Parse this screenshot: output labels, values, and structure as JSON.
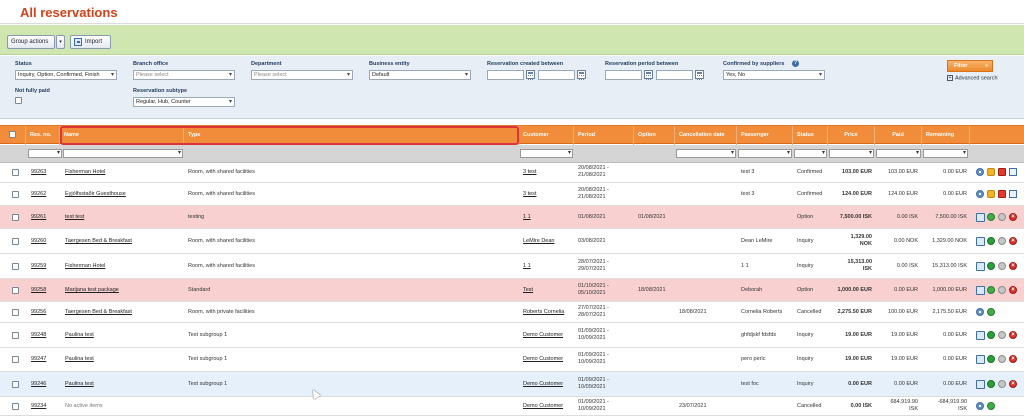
{
  "page": {
    "title": "All reservations"
  },
  "toolbar": {
    "group_actions": "Group actions",
    "group_arrow": "▾",
    "import": "Import"
  },
  "filters": {
    "status": {
      "label": "Status",
      "value": "Inquiry, Option, Confirmed, Finish"
    },
    "branch_office": {
      "label": "Branch office",
      "placeholder": "Please select"
    },
    "department": {
      "label": "Department",
      "placeholder": "Please select"
    },
    "business_entity": {
      "label": "Business entity",
      "value": "Default"
    },
    "created_between": {
      "label": "Reservation created between"
    },
    "period_between": {
      "label": "Reservation period between"
    },
    "confirmed_by_suppliers": {
      "label": "Confirmed by suppliers",
      "value": "Yes, No",
      "help": "?"
    },
    "not_fully_paid": {
      "label": "Not fully paid"
    },
    "subtype": {
      "label": "Reservation subtype",
      "value": "Regular, Hub, Counter"
    },
    "filter_button": "Filter",
    "filter_arrow": "»",
    "advanced_search": "Advanced search",
    "advanced_toggle": "+"
  },
  "columns": {
    "res_no": "Res. no.",
    "name": "Name",
    "type": "Type",
    "customer": "Customer",
    "period": "Period",
    "option": "Option",
    "cancellation_date": "Cancellation date",
    "passenger": "Passenger",
    "status": "Status",
    "price": "Price",
    "paid": "Paid",
    "remaining": "Remaining"
  },
  "rows": [
    {
      "res_no": "99263",
      "name": "Fisherman Hotel",
      "type": "Room, with shared facilities",
      "customer": "3 test",
      "period_1": "20/08/2021 -",
      "period_2": "21/08/2021",
      "option": "",
      "cancellation": "",
      "passenger": "test 3",
      "status": "Confirmed",
      "price": "103.00 EUR",
      "price_2": "",
      "paid": "103.00 EUR",
      "paid_2": "",
      "remaining": "0.00 EUR",
      "remaining_2": "",
      "highlight": false
    },
    {
      "res_no": "99262",
      "name": "Eyjólfsstaðir Guesthouse",
      "type": "Room, with shared facilities",
      "customer": "3 test",
      "period_1": "20/08/2021 -",
      "period_2": "21/08/2021",
      "option": "",
      "cancellation": "",
      "passenger": "test 3",
      "status": "Confirmed",
      "price": "124.00 EUR",
      "price_2": "",
      "paid": "124.00 EUR",
      "paid_2": "",
      "remaining": "0.00 EUR",
      "remaining_2": "",
      "highlight": false
    },
    {
      "res_no": "99261",
      "name": "test test",
      "type": "testing",
      "customer": "1 1",
      "period_1": "01/08/2021",
      "period_2": "",
      "option": "01/08/2021",
      "cancellation": "",
      "passenger": "",
      "status": "Option",
      "price": "7,500.00 ISK",
      "price_2": "",
      "paid": "0.00 ISK",
      "paid_2": "",
      "remaining": "7,500.00 ISK",
      "remaining_2": "",
      "highlight": true
    },
    {
      "res_no": "99260",
      "name": "Taergesen Bed & Breakfast",
      "type": "Room, with shared facilities",
      "customer": "LeMire Dean",
      "period_1": "03/08/2021",
      "period_2": "",
      "option": "",
      "cancellation": "",
      "passenger": "Dean LeMire",
      "status": "Inquiry",
      "price": "1,329.00",
      "price_2": "NOK",
      "paid": "0.00 NOK",
      "paid_2": "",
      "remaining": "1,329.00 NOK",
      "remaining_2": "",
      "highlight": false
    },
    {
      "res_no": "99259",
      "name": "Fisherman Hotel",
      "type": "Room, with shared facilities",
      "customer": "1 1",
      "period_1": "28/07/2021 -",
      "period_2": "29/07/2021",
      "option": "",
      "cancellation": "",
      "passenger": "1 1",
      "status": "Inquiry",
      "price": "15,313.00",
      "price_2": "ISK",
      "paid": "0.00 ISK",
      "paid_2": "",
      "remaining": "15,313.00 ISK",
      "remaining_2": "",
      "highlight": false
    },
    {
      "res_no": "99258",
      "name": "Marijana test package",
      "type": "Standard",
      "customer": "Test",
      "period_1": "01/10/2021 -",
      "period_2": "05/10/2021",
      "option": "18/08/2021",
      "cancellation": "",
      "passenger": "Deborah",
      "status": "Option",
      "price": "1,000.00 EUR",
      "price_2": "",
      "paid": "0.00 EUR",
      "paid_2": "",
      "remaining": "1,000.00 EUR",
      "remaining_2": "",
      "highlight": true
    },
    {
      "res_no": "99256",
      "name": "Taergesen Bed & Breakfast",
      "type": "Room, with private facilities",
      "customer": "Roberts Cornelia",
      "period_1": "27/07/2021 -",
      "period_2": "28/07/2021",
      "option": "",
      "cancellation": "18/08/2021",
      "passenger": "Cornelia Roberts",
      "status": "Cancelled",
      "price": "2,275.50 EUR",
      "price_2": "",
      "paid": "100.00 EUR",
      "paid_2": "",
      "remaining": "2,175.50 EUR",
      "remaining_2": "",
      "highlight": false
    },
    {
      "res_no": "99248",
      "name": "Paulina test",
      "type": "Test subgroup 1",
      "customer": "Demo Customer",
      "period_1": "01/09/2021 -",
      "period_2": "10/09/2021",
      "option": "",
      "cancellation": "",
      "passenger": "ghfdjskf fdsfds",
      "status": "Inquiry",
      "price": "19.00 EUR",
      "price_2": "",
      "paid": "19.00 EUR",
      "paid_2": "",
      "remaining": "0.00 EUR",
      "remaining_2": "",
      "highlight": false
    },
    {
      "res_no": "99247",
      "name": "Paulina test",
      "type": "Test subgroup 1",
      "customer": "Demo Customer",
      "period_1": "01/09/2021 -",
      "period_2": "10/09/2021",
      "option": "",
      "cancellation": "",
      "passenger": "pero peric",
      "status": "Inquiry",
      "price": "19.00 EUR",
      "price_2": "",
      "paid": "19.00 EUR",
      "paid_2": "",
      "remaining": "0.00 EUR",
      "remaining_2": "",
      "highlight": false
    },
    {
      "res_no": "99246",
      "name": "Paulina test",
      "type": "Test subgroup 1",
      "customer": "Demo Customer",
      "period_1": "01/09/2021 -",
      "period_2": "10/09/2021",
      "option": "",
      "cancellation": "",
      "passenger": "test foc",
      "status": "Inquiry",
      "price": "0.00 EUR",
      "price_2": "",
      "paid": "0.00 EUR",
      "paid_2": "",
      "remaining": "0.00 EUR",
      "remaining_2": "",
      "highlight": false
    },
    {
      "res_no": "99234",
      "name": "No active items",
      "type": "",
      "customer": "Demo Customer",
      "period_1": "01/09/2021 -",
      "period_2": "10/09/2021",
      "option": "",
      "cancellation": "23/07/2021",
      "passenger": "",
      "status": "Cancelled",
      "price": "0.00 ISK",
      "price_2": "",
      "paid": "684,919.90",
      "paid_2": "ISK",
      "remaining": "-684,919.90",
      "remaining_2": "ISK",
      "highlight": false
    }
  ],
  "colors": {
    "title": "#d4421a",
    "header_orange": "#f08c3a",
    "highlight_row": "#f8d0d0",
    "selected_row": "#e6f0fb",
    "toolbar_green": "#cfe6b0",
    "header_highlight_border": "#d9353b"
  }
}
